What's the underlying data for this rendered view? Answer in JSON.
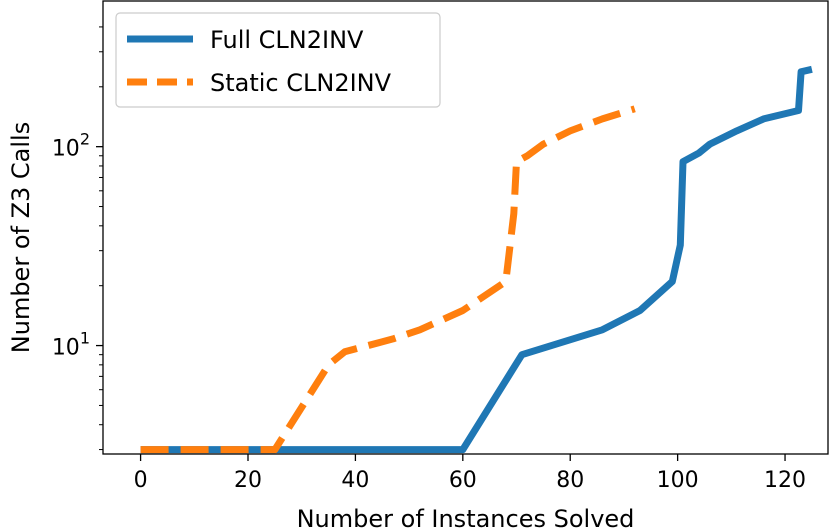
{
  "chart_data": {
    "type": "line",
    "title": "",
    "xlabel": "Number of Instances Solved",
    "ylabel": "Number of Z3 Calls",
    "xlim": [
      -7,
      128
    ],
    "ylim": [
      2.85,
      540
    ],
    "yscale": "log",
    "xticks": [
      0,
      20,
      40,
      60,
      80,
      100,
      120
    ],
    "xtick_labels": [
      "0",
      "20",
      "40",
      "60",
      "80",
      "100",
      "120"
    ],
    "yticks_major": [
      {
        "value": 10,
        "base": "10",
        "exp": "1"
      },
      {
        "value": 100,
        "base": "10",
        "exp": "2"
      }
    ],
    "yticks_minor": [
      3,
      4,
      5,
      6,
      7,
      8,
      9,
      20,
      30,
      40,
      50,
      60,
      70,
      80,
      90,
      200,
      300,
      400
    ],
    "legend_position": "top-left",
    "series": [
      {
        "name": "Full CLN2INV",
        "style": "solid",
        "color": "#1f77b4",
        "x": [
          0,
          60,
          71,
          86,
          93,
          99,
          100.5,
          101,
          104,
          106,
          111,
          116,
          122.5,
          123,
          125
        ],
        "y": [
          3,
          3,
          9,
          12,
          15,
          21,
          32,
          84,
          93,
          103,
          120,
          138,
          152,
          238,
          245
        ]
      },
      {
        "name": "Static CLN2INV",
        "style": "dashed",
        "color": "#ff7f0e",
        "x": [
          0,
          25,
          35,
          38,
          47,
          52,
          60,
          68,
          69.5,
          70,
          72,
          75,
          80,
          86,
          92
        ],
        "y": [
          3,
          3,
          8,
          9.3,
          10.8,
          12,
          15,
          21,
          46,
          84,
          90,
          103,
          120,
          138,
          155
        ]
      }
    ]
  }
}
